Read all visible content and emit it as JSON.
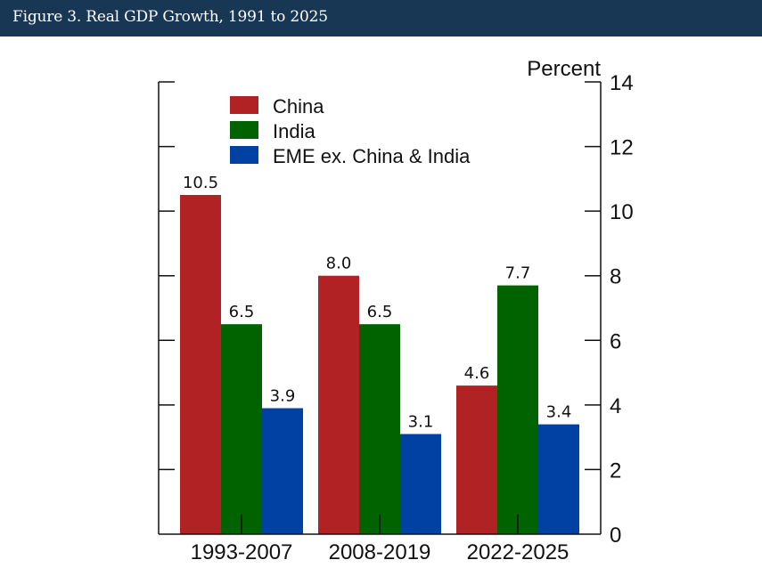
{
  "header": {
    "title": "Figure 3. Real GDP Growth, 1991 to 2025",
    "background": "#183755"
  },
  "chart_data": {
    "type": "bar",
    "title": "Figure 3. Real GDP Growth, 1991 to 2025",
    "xlabel": "",
    "ylabel": "Percent",
    "ylim": [
      0,
      14
    ],
    "yticks": [
      0,
      2,
      4,
      6,
      8,
      10,
      12,
      14
    ],
    "y_axis_side": "right",
    "grid": false,
    "legend_position": "top-left",
    "categories": [
      "1993-2007",
      "2008-2019",
      "2022-2025"
    ],
    "series": [
      {
        "name": "China",
        "color": "#b02223",
        "values": [
          10.5,
          8.0,
          4.6
        ],
        "labels": [
          "10.5",
          "8.0",
          "4.6"
        ]
      },
      {
        "name": "India",
        "color": "#006300",
        "values": [
          6.5,
          6.5,
          7.7
        ],
        "labels": [
          "6.5",
          "6.5",
          "7.7"
        ]
      },
      {
        "name": "EME ex. China & India",
        "color": "#0041a3",
        "values": [
          3.9,
          3.1,
          3.4
        ],
        "labels": [
          "3.9",
          "3.1",
          "3.4"
        ]
      }
    ]
  }
}
